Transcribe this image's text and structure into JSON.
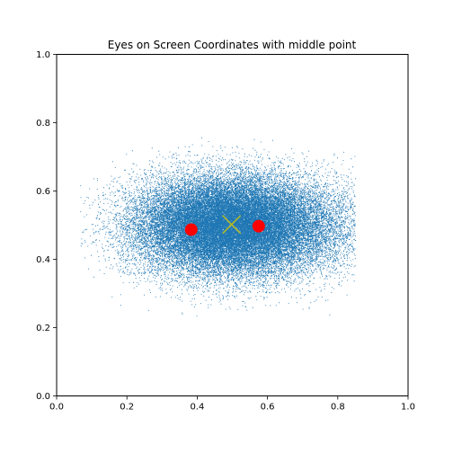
{
  "chart_data": {
    "type": "scatter",
    "title": "Eyes on Screen Coordinates with middle point",
    "xlabel": "",
    "ylabel": "",
    "xlim": [
      0.0,
      1.0
    ],
    "ylim": [
      0.0,
      1.0
    ],
    "xticks": [
      "0.0",
      "0.2",
      "0.4",
      "0.6",
      "0.8",
      "1.0"
    ],
    "yticks": [
      "0.0",
      "0.2",
      "0.4",
      "0.6",
      "0.8",
      "1.0"
    ],
    "grid": false,
    "legend": "none",
    "series": [
      {
        "marker": "dot",
        "color": "#1f77b4",
        "distribution": {
          "center": [
            0.5,
            0.5
          ],
          "x_extent": [
            0.06,
            0.85
          ],
          "y_extent": [
            0.21,
            0.76
          ],
          "approx_points": 40000
        }
      },
      {
        "marker": "circle",
        "color": "#ff0000",
        "points": [
          [
            0.383,
            0.487
          ],
          [
            0.575,
            0.497
          ]
        ]
      },
      {
        "marker": "x",
        "color": "#bcbd22",
        "points": [
          [
            0.498,
            0.502
          ]
        ]
      }
    ]
  }
}
